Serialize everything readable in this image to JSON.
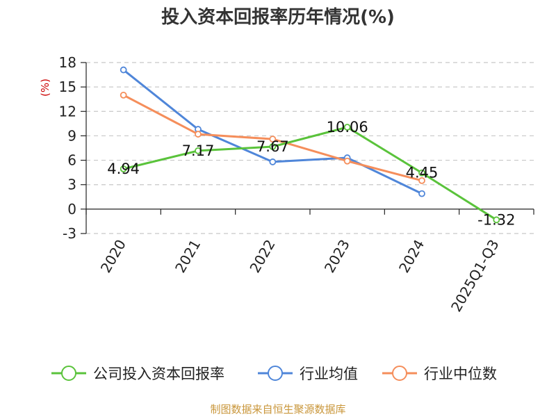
{
  "chart_data": {
    "type": "line",
    "title": "投入资本回报率历年情况(%)",
    "ylabel": "(%)",
    "categories": [
      "2020",
      "2021",
      "2022",
      "2023",
      "2024",
      "2025Q1-Q3"
    ],
    "ylim": [
      -3,
      18
    ],
    "yticks": [
      -3,
      0,
      3,
      6,
      9,
      12,
      15,
      18
    ],
    "grid": true,
    "legend_position": "bottom",
    "series": [
      {
        "name": "公司投入资本回报率",
        "color": "#5ac33b",
        "values": [
          4.94,
          7.17,
          7.67,
          10.06,
          4.45,
          -1.32
        ],
        "labels": [
          "4.94",
          "7.17",
          "7.67",
          "10.06",
          "4.45",
          "-1.32"
        ]
      },
      {
        "name": "行业均值",
        "color": "#4f86d9",
        "values": [
          17.1,
          9.8,
          5.8,
          6.3,
          1.9,
          null
        ]
      },
      {
        "name": "行业中位数",
        "color": "#f58e5b",
        "values": [
          14.0,
          9.2,
          8.6,
          5.9,
          3.5,
          null
        ]
      }
    ],
    "source": "制图数据来自恒生聚源数据库"
  }
}
